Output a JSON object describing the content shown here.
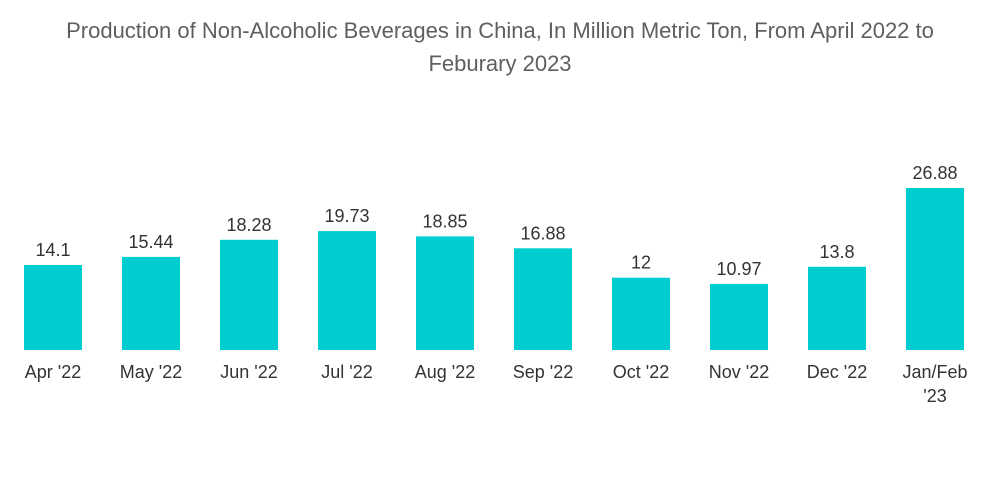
{
  "chart_data": {
    "type": "bar",
    "title_lines": [
      "Production of Non-Alcoholic Beverages in China, In Million Metric Ton, From April 2022 to",
      "Feburary 2023"
    ],
    "categories": [
      [
        "Apr '22"
      ],
      [
        "May '22"
      ],
      [
        "Jun '22"
      ],
      [
        "Jul '22"
      ],
      [
        "Aug '22"
      ],
      [
        "Sep '22"
      ],
      [
        "Oct '22"
      ],
      [
        "Nov '22"
      ],
      [
        "Dec '22"
      ],
      [
        "Jan/Feb",
        "'23"
      ]
    ],
    "values": [
      14.1,
      15.44,
      18.28,
      19.73,
      18.85,
      16.88,
      12,
      10.97,
      13.8,
      26.88
    ],
    "value_labels": [
      "14.1",
      "15.44",
      "18.28",
      "19.73",
      "18.85",
      "16.88",
      "12",
      "10.97",
      "13.8",
      "26.88"
    ],
    "xlabel": "",
    "ylabel": "",
    "ylim": [
      0,
      26.88
    ],
    "grid": false,
    "legend": "none",
    "bar_color": "#00CDCF"
  }
}
